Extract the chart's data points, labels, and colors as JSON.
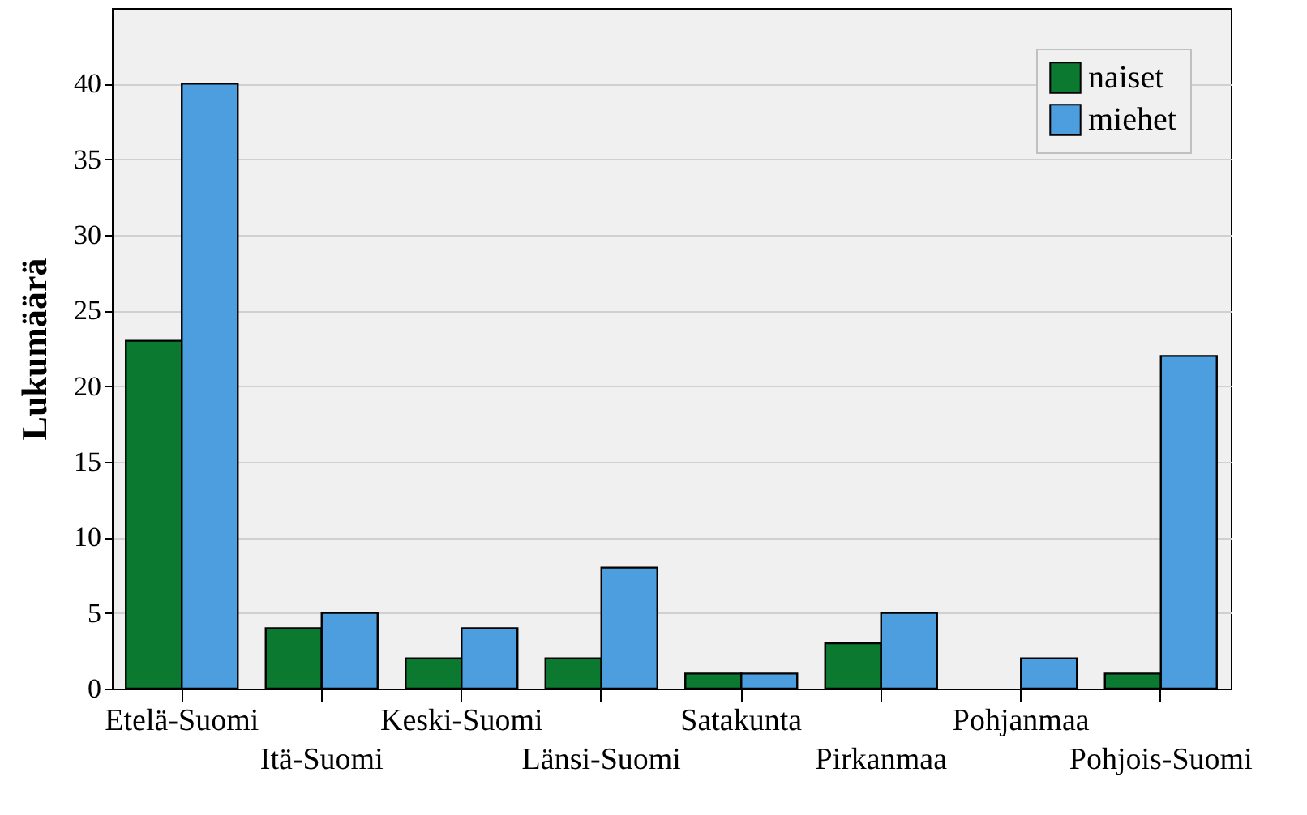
{
  "chart_data": {
    "type": "bar",
    "ylabel": "Lukumäärä",
    "categories": [
      "Etelä-Suomi",
      "Itä-Suomi",
      "Keski-Suomi",
      "Länsi-Suomi",
      "Satakunta",
      "Pirkanmaa",
      "Pohjanmaa",
      "Pohjois-Suomi"
    ],
    "series": [
      {
        "name": "naiset",
        "color": "#0b7a30",
        "values": [
          23,
          4,
          2,
          2,
          1,
          3,
          null,
          1
        ]
      },
      {
        "name": "miehet",
        "color": "#4c9ede",
        "values": [
          40,
          5,
          4,
          8,
          1,
          5,
          2,
          22
        ]
      }
    ],
    "ylim": [
      0,
      45
    ],
    "yticks": [
      0,
      5,
      10,
      15,
      20,
      25,
      30,
      35,
      40
    ],
    "grid": "y",
    "legend": "top right"
  }
}
